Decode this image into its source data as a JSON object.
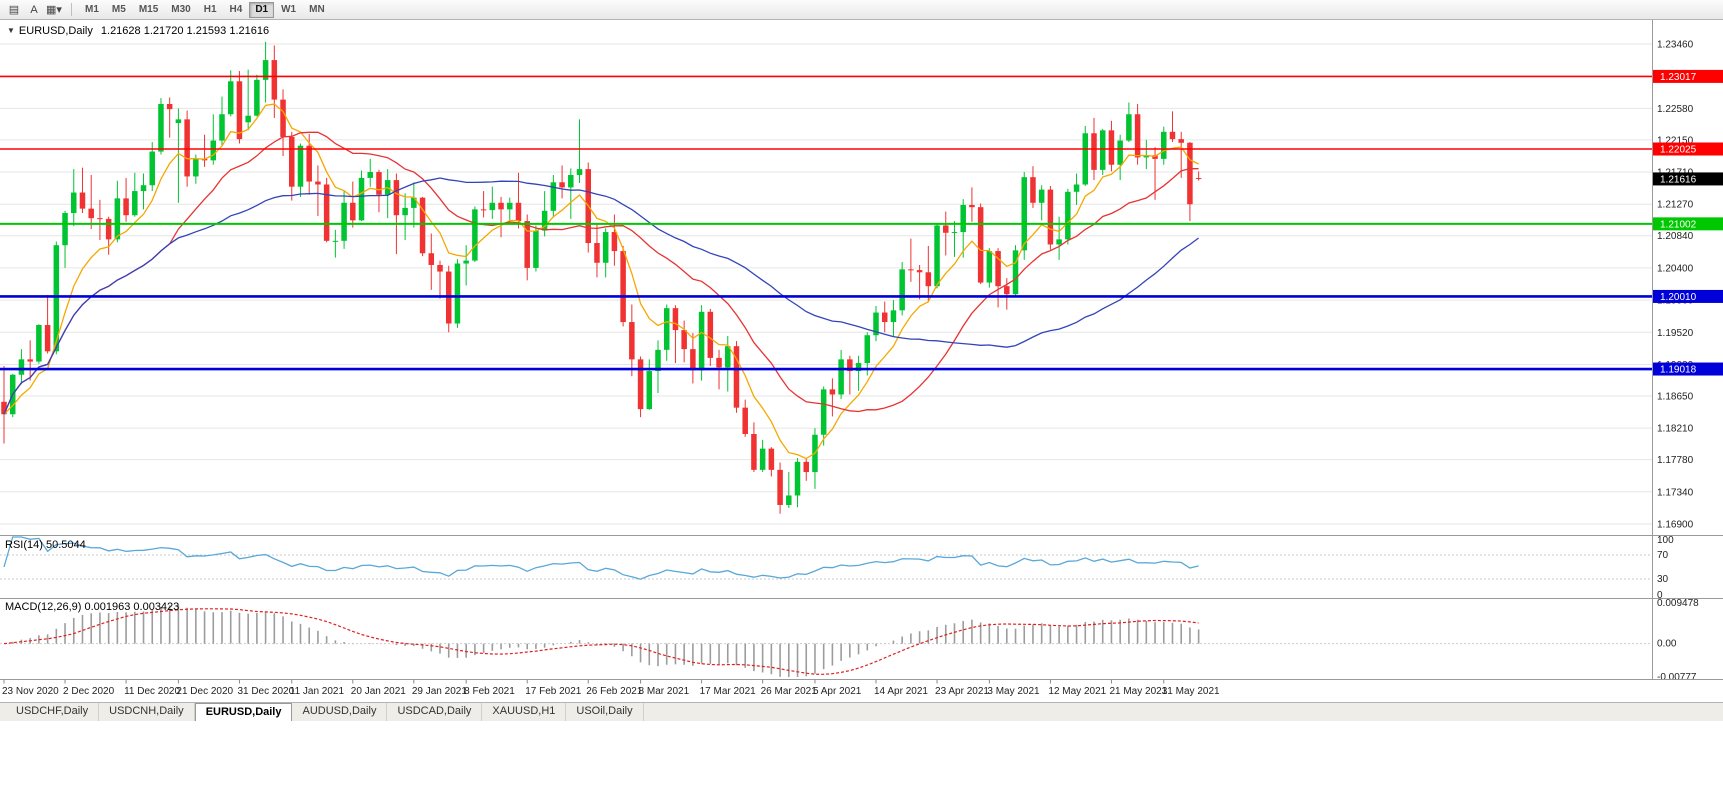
{
  "toolbar": {
    "left_icons": [
      {
        "name": "chart-list-icon",
        "glyph": "▤"
      },
      {
        "name": "text-label-button",
        "glyph": "A"
      },
      {
        "name": "chart-type-icon",
        "glyph": "▦▾"
      }
    ],
    "timeframes": [
      "M1",
      "M5",
      "M15",
      "M30",
      "H1",
      "H4",
      "D1",
      "W1",
      "MN"
    ],
    "selected_timeframe": "D1"
  },
  "chart": {
    "dropdown_glyph": "▼",
    "symbol_label": "EURUSD,Daily",
    "ohlc_label": "1.21628 1.21720 1.21593 1.21616"
  },
  "chart_data": {
    "type": "candlestick",
    "symbol": "EURUSD",
    "period": "Daily",
    "up_color": "#00C432",
    "down_color": "#F03232",
    "y_axis": {
      "top_value": 1.2346,
      "bottom_value": 1.169,
      "grid_values": [
        1.2346,
        1.2302,
        1.2258,
        1.2215,
        1.2171,
        1.2127,
        1.2084,
        1.204,
        1.1996,
        1.1952,
        1.1908,
        1.1865,
        1.1821,
        1.1778,
        1.1734,
        1.169
      ]
    },
    "hlines": [
      {
        "value": 1.23017,
        "label": "1.23017",
        "color": "#FF0000",
        "width": 1.6
      },
      {
        "value": 1.22025,
        "label": "1.22025",
        "color": "#FF0000",
        "width": 1.6
      },
      {
        "value": 1.21002,
        "label": "1.21002",
        "color": "#00C800",
        "width": 2
      },
      {
        "value": 1.2001,
        "label": "1.20010",
        "color": "#0000D8",
        "width": 2.6
      },
      {
        "value": 1.19018,
        "label": "1.19018",
        "color": "#0000D8",
        "width": 2.6
      }
    ],
    "current_price": {
      "value": 1.21616,
      "label": "1.21616",
      "bg": "#000000"
    },
    "ma_lines": [
      {
        "name": "ma-fast",
        "type": "ema",
        "period": 8,
        "color": "#F5A800"
      },
      {
        "name": "ma-mid",
        "type": "sma",
        "period": 20,
        "color": "#E83333"
      },
      {
        "name": "ma-slow",
        "type": "sma",
        "period": 45,
        "color": "#3344BB"
      }
    ],
    "x_labels": [
      {
        "text": "23 Nov 2020",
        "index": 0
      },
      {
        "text": "2 Dec 2020",
        "index": 7
      },
      {
        "text": "11 Dec 2020",
        "index": 14
      },
      {
        "text": "21 Dec 2020",
        "index": 20
      },
      {
        "text": "31 Dec 2020",
        "index": 27
      },
      {
        "text": "11 Jan 2021",
        "index": 33
      },
      {
        "text": "20 Jan 2021",
        "index": 40
      },
      {
        "text": "29 Jan 2021",
        "index": 47
      },
      {
        "text": "8 Feb 2021",
        "index": 53
      },
      {
        "text": "17 Feb 2021",
        "index": 60
      },
      {
        "text": "26 Feb 2021",
        "index": 67
      },
      {
        "text": "8 Mar 2021",
        "index": 73
      },
      {
        "text": "17 Mar 2021",
        "index": 80
      },
      {
        "text": "26 Mar 2021",
        "index": 87
      },
      {
        "text": "5 Apr 2021",
        "index": 93
      },
      {
        "text": "14 Apr 2021",
        "index": 100
      },
      {
        "text": "23 Apr 2021",
        "index": 107
      },
      {
        "text": "3 May 2021",
        "index": 113
      },
      {
        "text": "12 May 2021",
        "index": 120
      },
      {
        "text": "21 May 2021",
        "index": 127
      },
      {
        "text": "31 May 2021",
        "index": 133
      }
    ],
    "candles": [
      [
        1.1857,
        1.1906,
        1.18,
        1.184
      ],
      [
        1.184,
        1.1895,
        1.1836,
        1.1894
      ],
      [
        1.1894,
        1.1929,
        1.1881,
        1.1915
      ],
      [
        1.1915,
        1.1941,
        1.1886,
        1.1912
      ],
      [
        1.1912,
        1.1963,
        1.1909,
        1.1962
      ],
      [
        1.1962,
        1.2003,
        1.1923,
        1.1926
      ],
      [
        1.1926,
        1.2076,
        1.1922,
        1.2071
      ],
      [
        1.2071,
        1.2118,
        1.204,
        1.2115
      ],
      [
        1.2115,
        1.2175,
        1.2097,
        1.2143
      ],
      [
        1.2143,
        1.2177,
        1.2115,
        1.2121
      ],
      [
        1.2121,
        1.2167,
        1.2093,
        1.2108
      ],
      [
        1.2108,
        1.2133,
        1.2078,
        1.2107
      ],
      [
        1.2107,
        1.211,
        1.2058,
        1.2079
      ],
      [
        1.2079,
        1.2159,
        1.2075,
        1.2135
      ],
      [
        1.2135,
        1.2163,
        1.2103,
        1.2112
      ],
      [
        1.2112,
        1.217,
        1.211,
        1.2145
      ],
      [
        1.2145,
        1.2169,
        1.212,
        1.2153
      ],
      [
        1.2153,
        1.2212,
        1.2145,
        1.2199
      ],
      [
        1.2199,
        1.2272,
        1.2195,
        1.2264
      ],
      [
        1.2264,
        1.2273,
        1.2218,
        1.2257
      ],
      [
        1.2238,
        1.2258,
        1.2129,
        1.2243
      ],
      [
        1.2243,
        1.2255,
        1.2151,
        1.2165
      ],
      [
        1.2165,
        1.2195,
        1.2155,
        1.2189
      ],
      [
        1.2189,
        1.2222,
        1.2178,
        1.2187
      ],
      [
        1.2187,
        1.225,
        1.2181,
        1.2214
      ],
      [
        1.2214,
        1.2274,
        1.2206,
        1.225
      ],
      [
        1.225,
        1.231,
        1.2247,
        1.2295
      ],
      [
        1.2295,
        1.2309,
        1.221,
        1.2216
      ],
      [
        1.2239,
        1.2311,
        1.2228,
        1.2248
      ],
      [
        1.2248,
        1.2304,
        1.2247,
        1.2297
      ],
      [
        1.2297,
        1.2349,
        1.2266,
        1.2324
      ],
      [
        1.2324,
        1.2344,
        1.2245,
        1.227
      ],
      [
        1.227,
        1.2284,
        1.2193,
        1.2219
      ],
      [
        1.2219,
        1.2226,
        1.2132,
        1.2151
      ],
      [
        1.2151,
        1.221,
        1.2137,
        1.2207
      ],
      [
        1.2207,
        1.2223,
        1.214,
        1.2158
      ],
      [
        1.2158,
        1.218,
        1.2111,
        1.2154
      ],
      [
        1.2154,
        1.2163,
        1.2075,
        1.2077
      ],
      [
        1.2077,
        1.2092,
        1.2054,
        1.2077
      ],
      [
        1.2077,
        1.2145,
        1.2066,
        1.2129
      ],
      [
        1.2129,
        1.2158,
        1.2095,
        1.2105
      ],
      [
        1.2105,
        1.2173,
        1.2104,
        1.2163
      ],
      [
        1.2163,
        1.2189,
        1.2151,
        1.2171
      ],
      [
        1.2171,
        1.2174,
        1.2116,
        1.214
      ],
      [
        1.214,
        1.2175,
        1.2108,
        1.216
      ],
      [
        1.216,
        1.2169,
        1.2059,
        1.2112
      ],
      [
        1.2112,
        1.2142,
        1.2078,
        1.2122
      ],
      [
        1.2122,
        1.2157,
        1.2095,
        1.2136
      ],
      [
        1.2136,
        1.2137,
        1.2056,
        1.206
      ],
      [
        1.206,
        1.2087,
        1.201,
        1.2044
      ],
      [
        1.2044,
        1.205,
        1.1998,
        1.2035
      ],
      [
        1.2035,
        1.2043,
        1.1952,
        1.1964
      ],
      [
        1.1964,
        1.2052,
        1.1958,
        1.2046
      ],
      [
        1.2046,
        1.2071,
        1.2016,
        1.205
      ],
      [
        1.205,
        1.2124,
        1.2048,
        1.212
      ],
      [
        1.212,
        1.2145,
        1.2109,
        1.2119
      ],
      [
        1.2119,
        1.2151,
        1.2107,
        1.2129
      ],
      [
        1.2129,
        1.2137,
        1.2082,
        1.212
      ],
      [
        1.212,
        1.2136,
        1.2101,
        1.2129
      ],
      [
        1.2129,
        1.217,
        1.2094,
        1.2104
      ],
      [
        1.2104,
        1.2113,
        1.2023,
        1.204
      ],
      [
        1.204,
        1.2098,
        1.2035,
        1.2091
      ],
      [
        1.2091,
        1.2145,
        1.2083,
        1.2118
      ],
      [
        1.2118,
        1.2167,
        1.2109,
        1.2157
      ],
      [
        1.2157,
        1.218,
        1.2135,
        1.215
      ],
      [
        1.215,
        1.2176,
        1.2107,
        1.2167
      ],
      [
        1.2167,
        1.2243,
        1.2156,
        1.2175
      ],
      [
        1.2175,
        1.2184,
        1.2061,
        1.2074
      ],
      [
        1.2074,
        1.2101,
        1.2027,
        1.2047
      ],
      [
        1.2047,
        1.2094,
        1.2027,
        1.2089
      ],
      [
        1.2089,
        1.2113,
        1.2043,
        1.2063
      ],
      [
        1.2063,
        1.207,
        1.196,
        1.1966
      ],
      [
        1.1966,
        1.199,
        1.1892,
        1.1915
      ],
      [
        1.1915,
        1.1919,
        1.1836,
        1.1847
      ],
      [
        1.1847,
        1.1915,
        1.1846,
        1.1899
      ],
      [
        1.1899,
        1.1941,
        1.1869,
        1.1928
      ],
      [
        1.1928,
        1.199,
        1.1913,
        1.1985
      ],
      [
        1.1985,
        1.1989,
        1.191,
        1.1955
      ],
      [
        1.1955,
        1.1968,
        1.1911,
        1.1929
      ],
      [
        1.1929,
        1.1951,
        1.1882,
        1.19
      ],
      [
        1.19,
        1.1989,
        1.1886,
        1.198
      ],
      [
        1.198,
        1.1984,
        1.1906,
        1.1917
      ],
      [
        1.1917,
        1.1928,
        1.1874,
        1.1904
      ],
      [
        1.1904,
        1.1947,
        1.1871,
        1.1933
      ],
      [
        1.1933,
        1.194,
        1.1842,
        1.1849
      ],
      [
        1.1849,
        1.186,
        1.1809,
        1.1813
      ],
      [
        1.1813,
        1.1829,
        1.1761,
        1.1764
      ],
      [
        1.1764,
        1.1805,
        1.1761,
        1.1793
      ],
      [
        1.1793,
        1.1795,
        1.1755,
        1.1764
      ],
      [
        1.1764,
        1.1774,
        1.1704,
        1.1716
      ],
      [
        1.1716,
        1.1761,
        1.1712,
        1.1729
      ],
      [
        1.1729,
        1.178,
        1.1713,
        1.1775
      ],
      [
        1.1775,
        1.178,
        1.1749,
        1.1761
      ],
      [
        1.1761,
        1.1821,
        1.1738,
        1.1812
      ],
      [
        1.1812,
        1.1878,
        1.1797,
        1.1874
      ],
      [
        1.1874,
        1.1889,
        1.1837,
        1.1867
      ],
      [
        1.1867,
        1.1928,
        1.1861,
        1.1915
      ],
      [
        1.1915,
        1.192,
        1.1867,
        1.1899
      ],
      [
        1.1899,
        1.192,
        1.1872,
        1.191
      ],
      [
        1.191,
        1.1952,
        1.1893,
        1.1948
      ],
      [
        1.1948,
        1.1988,
        1.194,
        1.1979
      ],
      [
        1.1979,
        1.1994,
        1.1952,
        1.1966
      ],
      [
        1.1966,
        1.1996,
        1.1946,
        1.1982
      ],
      [
        1.1982,
        1.2048,
        1.1975,
        1.2038
      ],
      [
        1.2038,
        1.208,
        1.2021,
        1.2037
      ],
      [
        1.2037,
        1.2044,
        1.1997,
        1.2034
      ],
      [
        1.2034,
        1.207,
        1.1993,
        1.2015
      ],
      [
        1.2015,
        1.21,
        1.2012,
        1.2098
      ],
      [
        1.2098,
        1.2117,
        1.2057,
        1.2088
      ],
      [
        1.2088,
        1.2104,
        1.2055,
        1.2089
      ],
      [
        1.2089,
        1.2134,
        1.2054,
        1.2126
      ],
      [
        1.2126,
        1.215,
        1.2103,
        1.2123
      ],
      [
        1.2123,
        1.2128,
        1.2018,
        1.202
      ],
      [
        1.202,
        1.2067,
        1.2013,
        1.2063
      ],
      [
        1.2063,
        1.2067,
        1.1986,
        1.2015
      ],
      [
        1.2015,
        1.2026,
        1.1983,
        1.2004
      ],
      [
        1.2004,
        1.2071,
        1.2002,
        1.2064
      ],
      [
        1.2064,
        1.2171,
        1.2051,
        1.2164
      ],
      [
        1.2164,
        1.2179,
        1.2122,
        1.2129
      ],
      [
        1.2129,
        1.2153,
        1.2105,
        1.2147
      ],
      [
        1.2147,
        1.2152,
        1.2065,
        1.2072
      ],
      [
        1.2072,
        1.211,
        1.2051,
        1.2079
      ],
      [
        1.2079,
        1.2148,
        1.2072,
        1.2144
      ],
      [
        1.2144,
        1.2169,
        1.2126,
        1.2154
      ],
      [
        1.2154,
        1.2234,
        1.2152,
        1.2224
      ],
      [
        1.2224,
        1.2245,
        1.216,
        1.2174
      ],
      [
        1.2174,
        1.223,
        1.2167,
        1.2228
      ],
      [
        1.2228,
        1.2241,
        1.2172,
        1.2181
      ],
      [
        1.2181,
        1.2222,
        1.216,
        1.2214
      ],
      [
        1.2214,
        1.2266,
        1.2212,
        1.225
      ],
      [
        1.225,
        1.2264,
        1.2181,
        1.2191
      ],
      [
        1.2191,
        1.2215,
        1.2175,
        1.2194
      ],
      [
        1.2194,
        1.2205,
        1.2133,
        1.2189
      ],
      [
        1.2189,
        1.2233,
        1.2181,
        1.2226
      ],
      [
        1.2226,
        1.2254,
        1.2212,
        1.2216
      ],
      [
        1.2216,
        1.2226,
        1.2163,
        1.2211
      ],
      [
        1.2211,
        1.2212,
        1.2104,
        1.2127
      ],
      [
        1.21628,
        1.2172,
        1.21593,
        1.21616
      ]
    ],
    "rsi": {
      "label": "RSI(14) 50.5044",
      "period": 14,
      "levels": [
        70,
        30
      ],
      "axis_labels": [
        "100",
        "70",
        "30",
        "0"
      ],
      "color": "#59A8D8"
    },
    "macd": {
      "label": "MACD(12,26,9) 0.001963 0.003423",
      "fast": 12,
      "slow": 26,
      "signal": 9,
      "axis_max": 0.009478,
      "axis_min": -0.00777,
      "axis_labels": [
        "0.009478",
        "0.00",
        "-0.00777"
      ],
      "hist_color": "#9C9C9C",
      "signal_color": "#E02020"
    }
  },
  "tabs": {
    "items": [
      "USDCHF,Daily",
      "USDCNH,Daily",
      "EURUSD,Daily",
      "AUDUSD,Daily",
      "USDCAD,Daily",
      "XAUUSD,H1",
      "USOil,Daily"
    ],
    "active": "EURUSD,Daily"
  }
}
